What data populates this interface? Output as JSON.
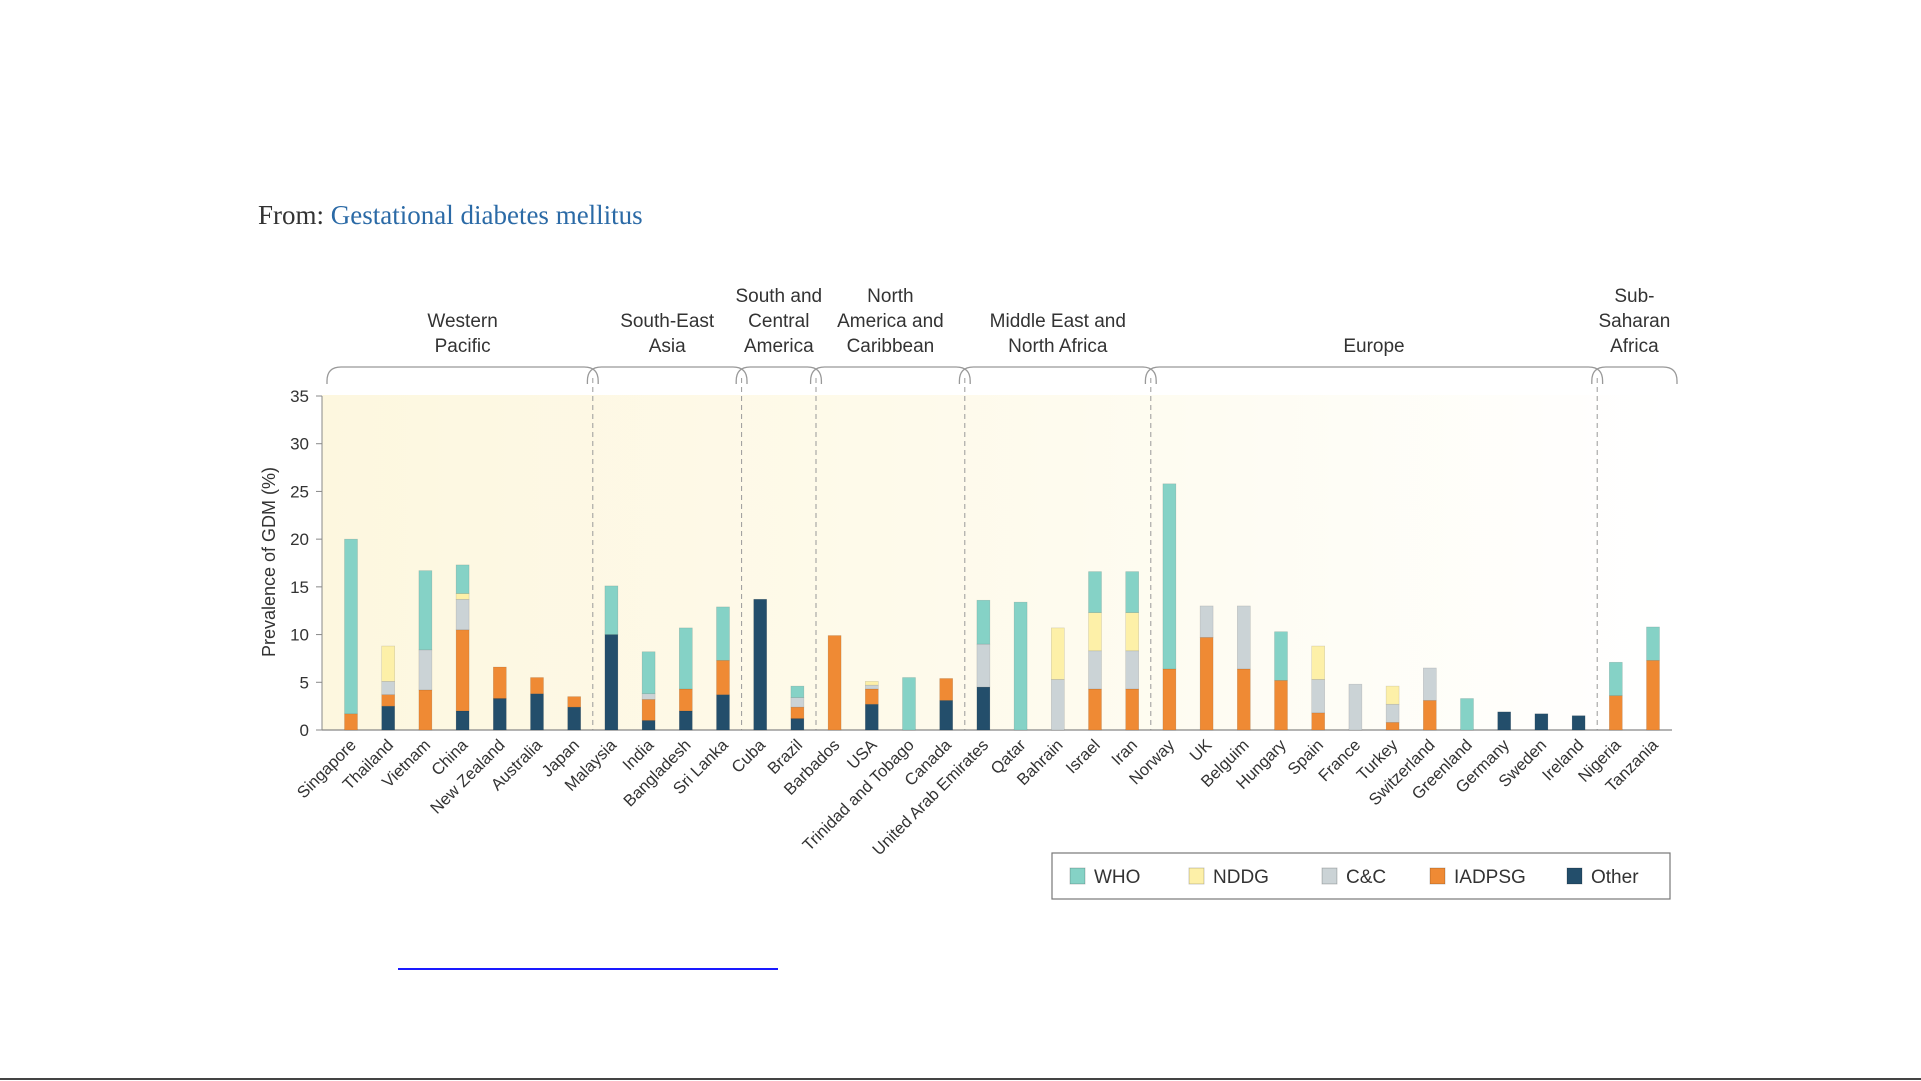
{
  "header": {
    "prefix": "From: ",
    "title": "Gestational diabetes mellitus"
  },
  "colors": {
    "WHO": "#85d2c6",
    "NDDG": "#fdf0a8",
    "C&C": "#cbd3d6",
    "IADPSG": "#ef8a34",
    "Other": "#234e6b"
  },
  "chart_data": {
    "type": "bar",
    "stacked": true,
    "ylabel": "Prevalence of GDM (%)",
    "ylim": [
      0,
      35
    ],
    "yticks": [
      0,
      5,
      10,
      15,
      20,
      25,
      30,
      35
    ],
    "legend_position": "bottom-right",
    "legend": [
      "WHO",
      "NDDG",
      "C&C",
      "IADPSG",
      "Other"
    ],
    "categories": [
      "Singapore",
      "Thailand",
      "Vietnam",
      "China",
      "New Zealand",
      "Australia",
      "Japan",
      "Malaysia",
      "India",
      "Bangladesh",
      "Sri Lanka",
      "Cuba",
      "Brazil",
      "Barbados",
      "USA",
      "Trinidad and Tobago",
      "Canada",
      "United Arab Emirates",
      "Qatar",
      "Bahrain",
      "Israel",
      "Iran",
      "Norway",
      "UK",
      "Belguim",
      "Hungary",
      "Spain",
      "France",
      "Turkey",
      "Switzerland",
      "Greenland",
      "Germany",
      "Sweden",
      "Ireland",
      "Nigeria",
      "Tanzania"
    ],
    "series": [
      {
        "name": "Other",
        "values": [
          0,
          2.5,
          0,
          2,
          3.3,
          3.8,
          2.4,
          10,
          1,
          2,
          3.7,
          13.7,
          1.2,
          0,
          2.7,
          0,
          3.1,
          4.5,
          0,
          0,
          0,
          0,
          0,
          0,
          0,
          0,
          0,
          0,
          0,
          0,
          0,
          1.9,
          1.7,
          1.5,
          0,
          0
        ]
      },
      {
        "name": "IADPSG",
        "values": [
          1.7,
          1.2,
          4.2,
          8.5,
          3.3,
          1.7,
          1.1,
          0,
          2.2,
          2.3,
          3.6,
          0,
          1.2,
          9.9,
          1.6,
          0,
          2.3,
          0,
          0,
          0,
          4.3,
          4.3,
          6.4,
          9.7,
          6.4,
          5.2,
          1.8,
          0,
          0.8,
          3.1,
          0,
          0,
          0,
          0,
          3.6,
          7.3
        ]
      },
      {
        "name": "C&C",
        "values": [
          0,
          1.4,
          4.2,
          3.2,
          0,
          0,
          0,
          0,
          0.6,
          0,
          0,
          0,
          1,
          0,
          0.4,
          0,
          0,
          4.5,
          0,
          5.3,
          4,
          4,
          0,
          3.3,
          6.6,
          0,
          3.5,
          4.8,
          1.9,
          3.4,
          0,
          0,
          0,
          0,
          0,
          0
        ]
      },
      {
        "name": "NDDG",
        "values": [
          0,
          3.7,
          0,
          0.6,
          0,
          0,
          0,
          0,
          0,
          0,
          0,
          0,
          0,
          0,
          0.4,
          0,
          0,
          0,
          0,
          5.4,
          4,
          4,
          0,
          0,
          0,
          0,
          3.5,
          0,
          1.9,
          0,
          0,
          0,
          0,
          0,
          0,
          0
        ]
      },
      {
        "name": "WHO",
        "values": [
          18.3,
          0,
          8.3,
          3,
          0,
          0,
          0,
          5.1,
          4.4,
          6.4,
          5.6,
          0,
          1.2,
          0,
          0,
          5.5,
          0,
          4.6,
          13.4,
          0,
          4.3,
          4.3,
          19.4,
          0,
          0,
          5.1,
          0,
          0,
          0,
          0,
          3.3,
          0,
          0,
          0,
          3.5,
          3.5
        ]
      }
    ],
    "regions": [
      {
        "name": [
          "Western",
          "Pacific"
        ],
        "start": 0,
        "end": 6
      },
      {
        "name": [
          "South-East",
          "Asia"
        ],
        "start": 7,
        "end": 10
      },
      {
        "name": [
          "South and",
          "Central",
          "America"
        ],
        "start": 11,
        "end": 12
      },
      {
        "name": [
          "North",
          "America and",
          "Caribbean"
        ],
        "start": 13,
        "end": 16
      },
      {
        "name": [
          "Middle East and",
          "North Africa"
        ],
        "start": 17,
        "end": 21
      },
      {
        "name": [
          "Europe"
        ],
        "start": 22,
        "end": 33
      },
      {
        "name": [
          "Sub-",
          "Saharan",
          "Africa"
        ],
        "start": 34,
        "end": 35
      }
    ]
  }
}
